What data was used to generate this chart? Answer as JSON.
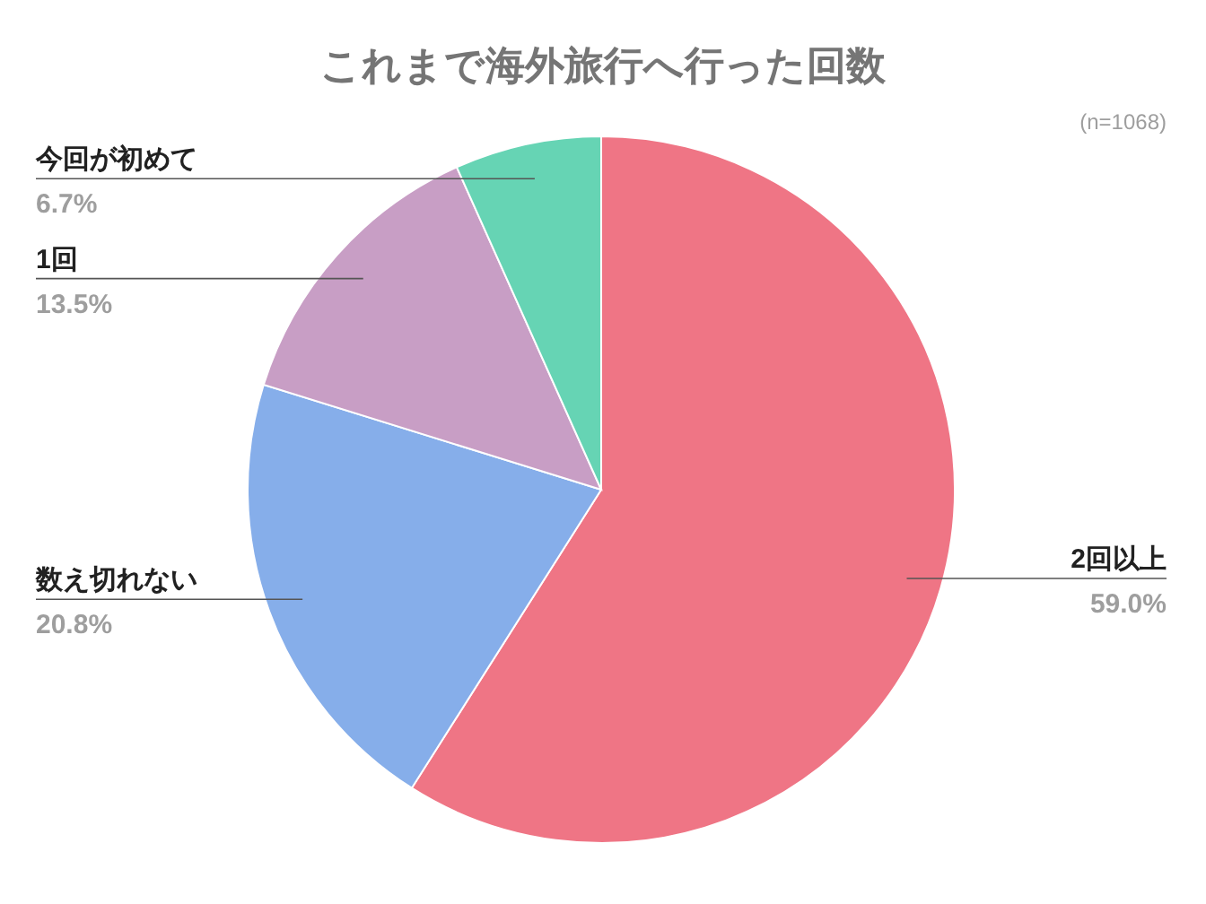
{
  "chart_data": {
    "type": "pie",
    "title": "これまで海外旅行へ行った回数",
    "categories": [
      "2回以上",
      "数え切れない",
      "1回",
      "今回が初めて"
    ],
    "values": [
      59.0,
      20.8,
      13.5,
      6.7
    ],
    "colors": [
      "#ef7585",
      "#86aeea",
      "#c89ec5",
      "#66d4b4"
    ],
    "value_labels": [
      "59.0%",
      "20.8%",
      "13.5%",
      "6.7%"
    ],
    "annotations": [
      "(n=1068)"
    ]
  }
}
